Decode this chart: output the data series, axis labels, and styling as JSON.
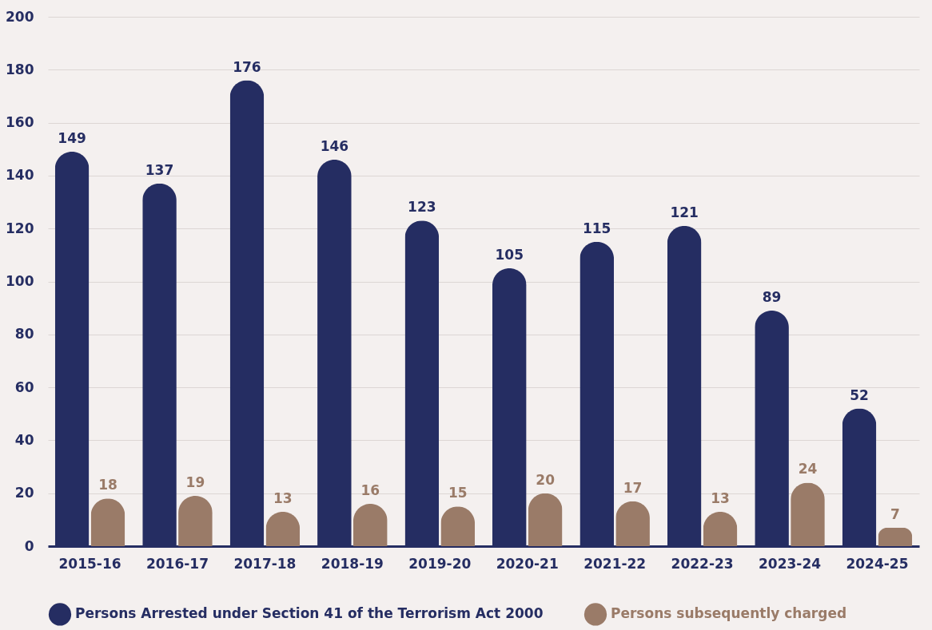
{
  "chart_data": {
    "type": "bar",
    "categories": [
      "2015-16",
      "2016-17",
      "2017-18",
      "2018-19",
      "2019-20",
      "2020-21",
      "2021-22",
      "2022-23",
      "2023-24",
      "2024-25"
    ],
    "series": [
      {
        "name": "Persons Arrested under Section 41 of the Terrorism Act 2000",
        "color": "#252d62",
        "values": [
          149,
          137,
          176,
          146,
          123,
          105,
          115,
          121,
          89,
          52
        ]
      },
      {
        "name": "Persons subsequently charged",
        "color": "#9a7b68",
        "values": [
          18,
          19,
          13,
          16,
          15,
          20,
          17,
          13,
          24,
          7
        ]
      }
    ],
    "ylim": [
      0,
      200
    ],
    "yticks": [
      0,
      20,
      40,
      60,
      80,
      100,
      120,
      140,
      160,
      180,
      200
    ],
    "grid": "y",
    "legend": "bottom",
    "data_labels": true
  }
}
